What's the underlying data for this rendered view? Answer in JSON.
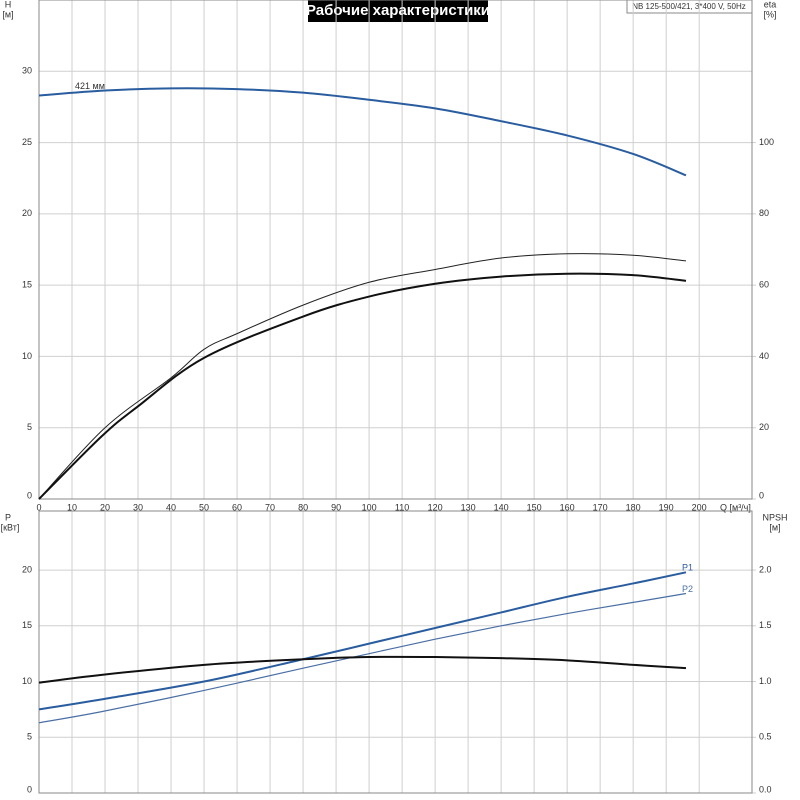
{
  "chart_data": [
    {
      "type": "line",
      "title": "Рабочие характеристики",
      "subtitle": "NB 125-500/421, 3*400 V, 50Hz",
      "ylabel": "H",
      "yunit": "[м]",
      "y2label": "eta",
      "y2unit": "[%]",
      "xlabel": "Q [м³/ч]",
      "xlim": [
        0,
        216
      ],
      "xticks": [
        0,
        10,
        20,
        30,
        40,
        50,
        60,
        70,
        80,
        90,
        100,
        110,
        120,
        130,
        140,
        150,
        160,
        170,
        180,
        190,
        200
      ],
      "ylim": [
        0,
        35
      ],
      "yticks": [
        0,
        5,
        10,
        15,
        20,
        25,
        30
      ],
      "y2lim": [
        0,
        140
      ],
      "y2ticks": [
        0,
        20,
        40,
        60,
        80,
        100
      ],
      "grid": true,
      "series": [
        {
          "name": "421 мм",
          "color": "#2a5d9f",
          "line_width": 2,
          "x": [
            0,
            20,
            40,
            60,
            80,
            100,
            120,
            140,
            160,
            180,
            196
          ],
          "values": [
            28.3,
            28.65,
            28.8,
            28.75,
            28.5,
            28.0,
            27.4,
            26.5,
            25.5,
            24.2,
            22.7
          ]
        },
        {
          "color": "#222222",
          "line_width": 1,
          "axis": "y2",
          "x": [
            0,
            20,
            40,
            50,
            60,
            80,
            100,
            120,
            140,
            160,
            180,
            196
          ],
          "values": [
            0,
            20,
            34,
            42,
            46.4,
            54.4,
            60.8,
            64.4,
            67.6,
            68.8,
            68.4,
            66.8
          ]
        },
        {
          "color": "#111111",
          "line_width": 2,
          "axis": "y2",
          "x": [
            0,
            19,
            30,
            50,
            80,
            100,
            120,
            140,
            160,
            180,
            196
          ],
          "values": [
            0,
            17.6,
            26,
            39.6,
            51.2,
            56.8,
            60.4,
            62.4,
            63.2,
            62.8,
            61.2
          ]
        }
      ]
    },
    {
      "type": "line",
      "ylabel": "P",
      "yunit": "[кВт]",
      "y2label": "NPSH",
      "y2unit": "[м]",
      "xlim": [
        0,
        216
      ],
      "ylim": [
        0,
        25.3
      ],
      "yticks": [
        0,
        5,
        10,
        15,
        20
      ],
      "y2lim": [
        0,
        2.53
      ],
      "y2ticks": [
        {
          "value": 0,
          "label": "0.0"
        },
        0.5,
        {
          "value": 1,
          "label": "1.0"
        },
        1.5,
        {
          "value": 2,
          "label": "2.0"
        }
      ],
      "grid": true,
      "series": [
        {
          "name": "P1",
          "color": "#2a5d9f",
          "line_width": 2,
          "x": [
            0,
            19,
            50,
            80,
            100,
            120,
            140,
            160,
            180,
            196
          ],
          "values": [
            7.5,
            8.4,
            10.0,
            12.0,
            13.4,
            14.8,
            16.2,
            17.6,
            18.8,
            19.8
          ]
        },
        {
          "name": "P2",
          "color": "#4a6fa5",
          "line_width": 1.2,
          "x": [
            0,
            19,
            50,
            80,
            100,
            120,
            140,
            160,
            180,
            196
          ],
          "values": [
            6.3,
            7.3,
            9.2,
            11.2,
            12.5,
            13.8,
            15.0,
            16.1,
            17.1,
            17.9
          ]
        },
        {
          "color": "#111111",
          "line_width": 2,
          "axis": "y2",
          "x": [
            0,
            19,
            50,
            80,
            100,
            120,
            140,
            160,
            180,
            196
          ],
          "values": [
            0.99,
            1.06,
            1.15,
            1.2,
            1.22,
            1.22,
            1.21,
            1.19,
            1.15,
            1.12
          ]
        }
      ]
    }
  ]
}
